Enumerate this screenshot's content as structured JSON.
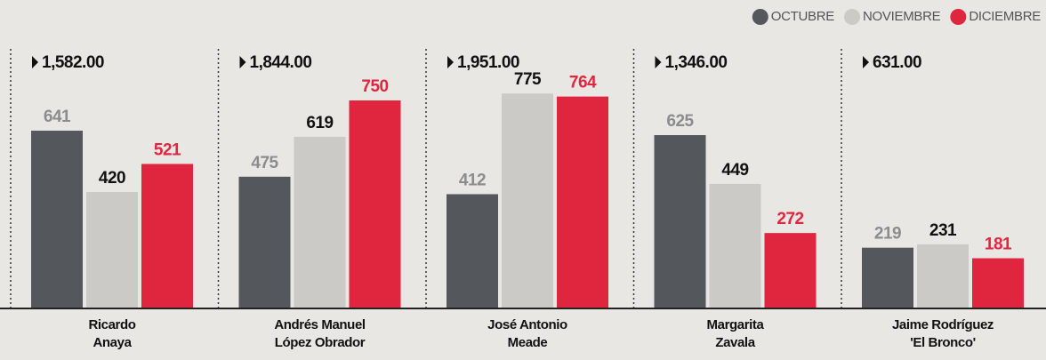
{
  "chart_data": {
    "type": "bar",
    "categories": [
      [
        "Ricardo",
        "Anaya"
      ],
      [
        "Andrés Manuel",
        "López Obrador"
      ],
      [
        "José Antonio",
        "Meade"
      ],
      [
        "Margarita",
        "Zavala"
      ],
      [
        "Jaime Rodríguez",
        "'El Bronco'"
      ]
    ],
    "totals": [
      "1,582.00",
      "1,844.00",
      "1,951.00",
      "1,346.00",
      "631.00"
    ],
    "series": [
      {
        "name": "OCTUBRE",
        "color": "#54585c",
        "label_color": "#8a8c8e",
        "values": [
          641,
          475,
          412,
          625,
          219
        ]
      },
      {
        "name": "NOVIEMBRE",
        "color": "#cbcac7",
        "label_color": "#111111",
        "values": [
          420,
          619,
          775,
          449,
          231
        ]
      },
      {
        "name": "DICIEMBRE",
        "color": "#e0263f",
        "label_color": "#e0263f",
        "values": [
          521,
          750,
          764,
          272,
          181
        ]
      }
    ],
    "ylim": [
      0,
      1000
    ],
    "legend": "top-right"
  }
}
